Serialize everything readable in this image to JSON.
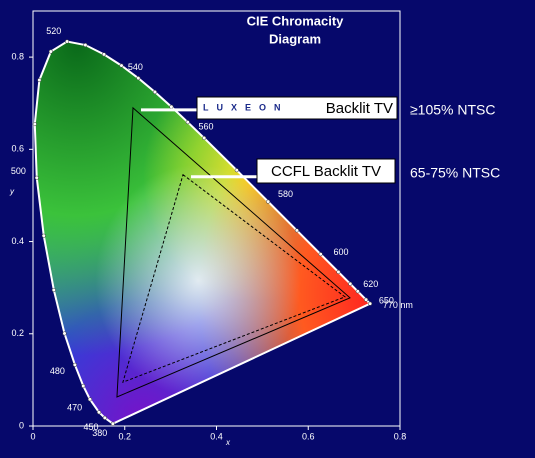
{
  "chart_data": {
    "type": "chromaticity",
    "title": [
      "CIE Chromacity",
      "Diagram"
    ],
    "xlabel": "x",
    "ylabel": "y",
    "xlim": [
      0,
      0.8
    ],
    "ylim": [
      0,
      0.9
    ],
    "xticks": [
      0,
      0.2,
      0.4,
      0.6,
      0.8
    ],
    "yticks": [
      0,
      0.2,
      0.4,
      0.6,
      0.8
    ],
    "locus": {
      "color": "#ffffff",
      "x": [
        0.1741,
        0.1566,
        0.144,
        0.1241,
        0.1096,
        0.0913,
        0.0687,
        0.0454,
        0.0235,
        0.0082,
        0.0039,
        0.0139,
        0.0389,
        0.0743,
        0.1142,
        0.1547,
        0.1929,
        0.2296,
        0.2658,
        0.3016,
        0.3373,
        0.3731,
        0.4441,
        0.5125,
        0.5752,
        0.627,
        0.6658,
        0.6915,
        0.7079,
        0.726,
        0.7347
      ],
      "y": [
        0.005,
        0.0177,
        0.0297,
        0.0578,
        0.0868,
        0.1327,
        0.2007,
        0.295,
        0.4127,
        0.5384,
        0.6548,
        0.7502,
        0.812,
        0.8338,
        0.8262,
        0.8059,
        0.7816,
        0.7543,
        0.7243,
        0.6923,
        0.6589,
        0.6245,
        0.5547,
        0.4866,
        0.4242,
        0.3725,
        0.334,
        0.3083,
        0.292,
        0.274,
        0.2653
      ]
    },
    "annotations": [
      {
        "text": "380",
        "x": 0.1741,
        "y": 0.005
      },
      {
        "text": "450",
        "x": 0.1566,
        "y": 0.0177
      },
      {
        "text": "470",
        "x": 0.1241,
        "y": 0.0578
      },
      {
        "text": "480",
        "x": 0.0913,
        "y": 0.1327
      },
      {
        "text": "500",
        "x": 0.0082,
        "y": 0.5384
      },
      {
        "text": "520",
        "x": 0.0743,
        "y": 0.8338
      },
      {
        "text": "540",
        "x": 0.2296,
        "y": 0.7543
      },
      {
        "text": "560",
        "x": 0.3731,
        "y": 0.6245
      },
      {
        "text": "580",
        "x": 0.5125,
        "y": 0.4866
      },
      {
        "text": "600",
        "x": 0.627,
        "y": 0.3725
      },
      {
        "text": "620",
        "x": 0.6915,
        "y": 0.3083
      },
      {
        "text": "650",
        "x": 0.726,
        "y": 0.274
      },
      {
        "text": "770 nm",
        "x": 0.7347,
        "y": 0.2653
      }
    ],
    "series": [
      {
        "name": "Backlit TV",
        "brand": "LUXEON",
        "note": "≥105% NTSC",
        "color": "#000000",
        "dashed": false,
        "x": [
          0.218,
          0.691,
          0.183
        ],
        "y": [
          0.69,
          0.278,
          0.063
        ]
      },
      {
        "name": "CCFL Backlit TV",
        "note": "65-75% NTSC",
        "color": "#000000",
        "dashed": true,
        "x": [
          0.327,
          0.68,
          0.196
        ],
        "y": [
          0.545,
          0.28,
          0.095
        ]
      }
    ]
  }
}
